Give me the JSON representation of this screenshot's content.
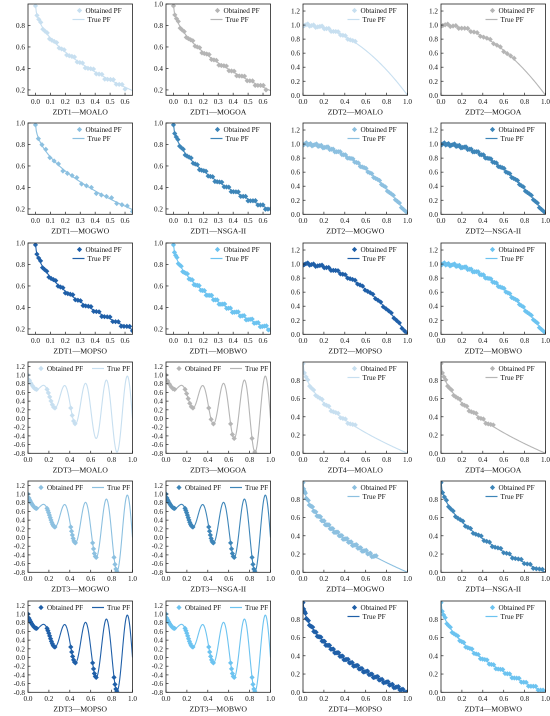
{
  "figure": {
    "legend_obtained": "Obtained PF",
    "legend_true": "True PF"
  },
  "colors": {
    "MOALO": "#c7dff0",
    "MOGOA": "#b5b5b5",
    "MOGWO": "#8cc0e0",
    "NSGA-II": "#3d85b8",
    "MOPSO": "#1f5fa8",
    "MOBWO": "#6cc3f0"
  },
  "chart_data": [
    {
      "type": "scatter",
      "problem": "ZDT1",
      "algorithm": "MOALO",
      "title": "ZDT1—MOALO",
      "xlim": [
        -0.05,
        0.65
      ],
      "ylim": [
        0.15,
        1.0
      ],
      "xticks": [
        0.0,
        0.1,
        0.2,
        0.3,
        0.4,
        0.5,
        0.6
      ],
      "yticks": [
        0.2,
        0.4,
        0.6,
        0.8
      ],
      "obtained_x_range": [
        0.0,
        0.6
      ],
      "obtained_points": 36,
      "legend": "top-right"
    },
    {
      "type": "scatter",
      "problem": "ZDT1",
      "algorithm": "MOGOA",
      "title": "ZDT1—MOGOA",
      "xlim": [
        -0.05,
        0.65
      ],
      "ylim": [
        0.15,
        1.0
      ],
      "xticks": [
        0.0,
        0.1,
        0.2,
        0.3,
        0.4,
        0.5,
        0.6
      ],
      "yticks": [
        0.2,
        0.4,
        0.6,
        0.8,
        1.0
      ],
      "obtained_x_range": [
        0.0,
        0.62
      ],
      "obtained_points": 40,
      "legend": "top-right"
    },
    {
      "type": "scatter",
      "problem": "ZDT2",
      "algorithm": "MOALO",
      "title": "ZDT2—MOALO",
      "xlim": [
        0,
        1
      ],
      "ylim": [
        0,
        1.3
      ],
      "xticks": [
        0.0,
        0.2,
        0.4,
        0.6,
        0.8,
        1.0
      ],
      "yticks": [
        0.0,
        0.2,
        0.4,
        0.6,
        0.8,
        1.0,
        1.2
      ],
      "obtained_x_range": [
        0.0,
        0.5
      ],
      "obtained_points": 25,
      "legend": "top-right"
    },
    {
      "type": "scatter",
      "problem": "ZDT2",
      "algorithm": "MOGOA",
      "title": "ZDT2—MOGOA",
      "xlim": [
        0,
        1
      ],
      "ylim": [
        0,
        1.3
      ],
      "xticks": [
        0.0,
        0.2,
        0.4,
        0.6,
        0.8,
        1.0
      ],
      "yticks": [
        0.0,
        0.2,
        0.4,
        0.6,
        0.8,
        1.0,
        1.2
      ],
      "obtained_x_range": [
        0.0,
        0.7
      ],
      "obtained_points": 25,
      "legend": "top-right"
    },
    {
      "type": "scatter",
      "problem": "ZDT1",
      "algorithm": "MOGWO",
      "title": "ZDT1—MOGWO",
      "xlim": [
        -0.05,
        0.65
      ],
      "ylim": [
        0.15,
        1.0
      ],
      "xticks": [
        0.0,
        0.1,
        0.2,
        0.3,
        0.4,
        0.5,
        0.6
      ],
      "yticks": [
        0.2,
        0.4,
        0.6,
        0.8,
        1.0
      ],
      "obtained_x_range": [
        0.0,
        0.65
      ],
      "obtained_points": 22,
      "legend": "top-right"
    },
    {
      "type": "scatter",
      "problem": "ZDT1",
      "algorithm": "NSGA-II",
      "title": "ZDT1—NSGA-II",
      "xlim": [
        -0.05,
        0.65
      ],
      "ylim": [
        0.15,
        1.0
      ],
      "xticks": [
        0.0,
        0.1,
        0.2,
        0.3,
        0.4,
        0.5,
        0.6
      ],
      "yticks": [
        0.2,
        0.4,
        0.6,
        0.8,
        1.0
      ],
      "obtained_x_range": [
        0.0,
        0.65
      ],
      "obtained_points": 45,
      "legend": "top-right"
    },
    {
      "type": "scatter",
      "problem": "ZDT2",
      "algorithm": "MOGWO",
      "title": "ZDT2—MOGWO",
      "xlim": [
        0,
        1
      ],
      "ylim": [
        0,
        1.3
      ],
      "xticks": [
        0.0,
        0.2,
        0.4,
        0.6,
        0.8,
        1.0
      ],
      "yticks": [
        0.0,
        0.2,
        0.4,
        0.6,
        0.8,
        1.0,
        1.2
      ],
      "obtained_x_range": [
        0.0,
        1.0
      ],
      "obtained_points": 60,
      "legend": "top-right"
    },
    {
      "type": "scatter",
      "problem": "ZDT2",
      "algorithm": "NSGA-II",
      "title": "ZDT2—NSGA-II",
      "xlim": [
        0,
        1
      ],
      "ylim": [
        0,
        1.3
      ],
      "xticks": [
        0.0,
        0.2,
        0.4,
        0.6,
        0.8,
        1.0
      ],
      "yticks": [
        0.0,
        0.2,
        0.4,
        0.6,
        0.8,
        1.0,
        1.2
      ],
      "obtained_x_range": [
        0.0,
        1.0
      ],
      "obtained_points": 60,
      "legend": "top-right"
    },
    {
      "type": "scatter",
      "problem": "ZDT1",
      "algorithm": "MOPSO",
      "title": "ZDT1—MOPSO",
      "xlim": [
        -0.05,
        0.65
      ],
      "ylim": [
        0.15,
        1.0
      ],
      "xticks": [
        0.0,
        0.1,
        0.2,
        0.3,
        0.4,
        0.5,
        0.6
      ],
      "yticks": [
        0.2,
        0.4,
        0.6,
        0.8,
        1.0
      ],
      "obtained_x_range": [
        0.0,
        0.65
      ],
      "obtained_points": 40,
      "legend": "top-right"
    },
    {
      "type": "scatter",
      "problem": "ZDT1",
      "algorithm": "MOBWO",
      "title": "ZDT1—MOBWO",
      "xlim": [
        -0.05,
        0.65
      ],
      "ylim": [
        0.15,
        1.0
      ],
      "xticks": [
        0.0,
        0.1,
        0.2,
        0.3,
        0.4,
        0.5,
        0.6
      ],
      "yticks": [
        0.2,
        0.4,
        0.6,
        0.8,
        1.0
      ],
      "obtained_x_range": [
        0.0,
        0.65
      ],
      "obtained_points": 55,
      "legend": "top-right"
    },
    {
      "type": "scatter",
      "problem": "ZDT2",
      "algorithm": "MOPSO",
      "title": "ZDT2—MOPSO",
      "xlim": [
        0,
        1
      ],
      "ylim": [
        0,
        1.3
      ],
      "xticks": [
        0.0,
        0.2,
        0.4,
        0.6,
        0.8,
        1.0
      ],
      "yticks": [
        0.0,
        0.2,
        0.4,
        0.6,
        0.8,
        1.0,
        1.2
      ],
      "obtained_x_range": [
        0.0,
        1.0
      ],
      "obtained_points": 45,
      "legend": "top-right"
    },
    {
      "type": "scatter",
      "problem": "ZDT2",
      "algorithm": "MOBWO",
      "title": "ZDT2—MOBWO",
      "xlim": [
        0,
        1
      ],
      "ylim": [
        0,
        1.3
      ],
      "xticks": [
        0.0,
        0.2,
        0.4,
        0.6,
        0.8,
        1.0
      ],
      "yticks": [
        0.0,
        0.2,
        0.4,
        0.6,
        0.8,
        1.0,
        1.2
      ],
      "obtained_x_range": [
        0.0,
        1.0
      ],
      "obtained_points": 60,
      "legend": "top-right"
    },
    {
      "type": "scatter",
      "problem": "ZDT3",
      "algorithm": "MOALO",
      "title": "ZDT3—MOALO",
      "xlim": [
        0,
        1
      ],
      "ylim": [
        -0.8,
        1.3
      ],
      "xticks": [
        0.0,
        0.2,
        0.4,
        0.6,
        0.8,
        1.0
      ],
      "yticks": [
        -0.8,
        -0.6,
        -0.4,
        -0.2,
        0.0,
        0.2,
        0.4,
        0.6,
        0.8,
        1.0,
        1.2
      ],
      "obtained_x_range": [
        0.0,
        0.45
      ],
      "obtained_points": 18,
      "legend": "top"
    },
    {
      "type": "scatter",
      "problem": "ZDT3",
      "algorithm": "MOGOA",
      "title": "ZDT3—MOGOA",
      "xlim": [
        0,
        1
      ],
      "ylim": [
        -0.8,
        1.3
      ],
      "xticks": [
        0.0,
        0.2,
        0.4,
        0.6,
        0.8,
        1.0
      ],
      "yticks": [
        -0.8,
        -0.6,
        -0.4,
        -0.2,
        0.0,
        0.2,
        0.4,
        0.6,
        0.8,
        1.0,
        1.2
      ],
      "obtained_x_range": [
        0.0,
        0.85
      ],
      "obtained_points": 20,
      "legend": "top"
    },
    {
      "type": "scatter",
      "problem": "ZDT4",
      "algorithm": "MOALO",
      "title": "ZDT4—MOALO",
      "xlim": [
        0,
        1
      ],
      "ylim": [
        0,
        1.0
      ],
      "xticks": [
        0.0,
        0.2,
        0.4,
        0.6,
        0.8,
        1.0
      ],
      "yticks": [
        0.0,
        0.2,
        0.4,
        0.6,
        0.8
      ],
      "obtained_x_range": [
        0.0,
        0.5
      ],
      "obtained_points": 25,
      "legend": "top-right"
    },
    {
      "type": "scatter",
      "problem": "ZDT4",
      "algorithm": "MOGOA",
      "title": "ZDT4—MOGOA",
      "xlim": [
        0,
        1
      ],
      "ylim": [
        0,
        1.0
      ],
      "xticks": [
        0.0,
        0.2,
        0.4,
        0.6,
        0.8,
        1.0
      ],
      "yticks": [
        0.0,
        0.2,
        0.4,
        0.6,
        0.8
      ],
      "obtained_x_range": [
        0.0,
        0.5
      ],
      "obtained_points": 25,
      "legend": "top-right"
    },
    {
      "type": "scatter",
      "problem": "ZDT3",
      "algorithm": "MOGWO",
      "title": "ZDT3—MOGWO",
      "xlim": [
        0,
        1
      ],
      "ylim": [
        -0.8,
        1.3
      ],
      "xticks": [
        0.0,
        0.2,
        0.4,
        0.6,
        0.8,
        1.0
      ],
      "yticks": [
        -0.8,
        -0.6,
        -0.4,
        -0.2,
        0.0,
        0.2,
        0.4,
        0.6,
        0.8,
        1.0,
        1.2
      ],
      "obtained_x_range": [
        0.0,
        0.85
      ],
      "obtained_points": 40,
      "legend": "top"
    },
    {
      "type": "scatter",
      "problem": "ZDT3",
      "algorithm": "NSGA-II",
      "title": "ZDT3—NSGA-II",
      "xlim": [
        0,
        1
      ],
      "ylim": [
        -0.8,
        1.3
      ],
      "xticks": [
        0.0,
        0.2,
        0.4,
        0.6,
        0.8,
        1.0
      ],
      "yticks": [
        -0.8,
        -0.6,
        -0.4,
        -0.2,
        0.0,
        0.2,
        0.4,
        0.6,
        0.8,
        1.0,
        1.2
      ],
      "obtained_x_range": [
        0.0,
        0.85
      ],
      "obtained_points": 40,
      "legend": "top"
    },
    {
      "type": "scatter",
      "problem": "ZDT4",
      "algorithm": "MOGWO",
      "title": "ZDT4—MOGWO",
      "xlim": [
        0,
        1
      ],
      "ylim": [
        0,
        1.0
      ],
      "xticks": [
        0.0,
        0.2,
        0.4,
        0.6,
        0.8,
        1.0
      ],
      "yticks": [
        0.0,
        0.2,
        0.4,
        0.6,
        0.8
      ],
      "obtained_x_range": [
        0.0,
        0.7
      ],
      "obtained_points": 60,
      "legend": "top-right"
    },
    {
      "type": "scatter",
      "problem": "ZDT4",
      "algorithm": "NSGA-II",
      "title": "ZDT4—NSGA-II",
      "xlim": [
        0,
        1
      ],
      "ylim": [
        0,
        1.0
      ],
      "xticks": [
        0.0,
        0.2,
        0.4,
        0.6,
        0.8,
        1.0
      ],
      "yticks": [
        0.0,
        0.2,
        0.4,
        0.6,
        0.8
      ],
      "obtained_x_range": [
        0.0,
        1.0
      ],
      "obtained_points": 40,
      "legend": "top-right"
    },
    {
      "type": "scatter",
      "problem": "ZDT3",
      "algorithm": "MOPSO",
      "title": "ZDT3—MOPSO",
      "xlim": [
        0,
        1
      ],
      "ylim": [
        -0.8,
        1.3
      ],
      "xticks": [
        0.0,
        0.2,
        0.4,
        0.6,
        0.8,
        1.0
      ],
      "yticks": [
        -0.8,
        -0.6,
        -0.4,
        -0.2,
        0.0,
        0.2,
        0.4,
        0.6,
        0.8,
        1.0,
        1.2
      ],
      "obtained_x_range": [
        0.0,
        0.85
      ],
      "obtained_points": 35,
      "legend": "top"
    },
    {
      "type": "scatter",
      "problem": "ZDT3",
      "algorithm": "MOBWO",
      "title": "ZDT3—MOBWO",
      "xlim": [
        0,
        1
      ],
      "ylim": [
        -0.8,
        1.3
      ],
      "xticks": [
        0.0,
        0.2,
        0.4,
        0.6,
        0.8,
        1.0
      ],
      "yticks": [
        -0.8,
        -0.6,
        -0.4,
        -0.2,
        0.0,
        0.2,
        0.4,
        0.6,
        0.8,
        1.0,
        1.2
      ],
      "obtained_x_range": [
        0.0,
        0.85
      ],
      "obtained_points": 35,
      "legend": "top"
    },
    {
      "type": "scatter",
      "problem": "ZDT4",
      "algorithm": "MOPSO",
      "title": "ZDT4—MOPSO",
      "xlim": [
        0,
        1
      ],
      "ylim": [
        0,
        1.0
      ],
      "xticks": [
        0.0,
        0.2,
        0.4,
        0.6,
        0.8,
        1.0
      ],
      "yticks": [
        0.0,
        0.2,
        0.4,
        0.6,
        0.8
      ],
      "obtained_x_range": [
        0.0,
        1.0
      ],
      "obtained_points": 80,
      "legend": "top-right"
    },
    {
      "type": "scatter",
      "problem": "ZDT4",
      "algorithm": "MOBWO",
      "title": "ZDT4—MOBWO",
      "xlim": [
        0,
        1
      ],
      "ylim": [
        0,
        1.0
      ],
      "xticks": [
        0.0,
        0.2,
        0.4,
        0.6,
        0.8,
        1.0
      ],
      "yticks": [
        0.0,
        0.2,
        0.4,
        0.6,
        0.8
      ],
      "obtained_x_range": [
        0.0,
        1.0
      ],
      "obtained_points": 50,
      "legend": "top-right"
    }
  ]
}
